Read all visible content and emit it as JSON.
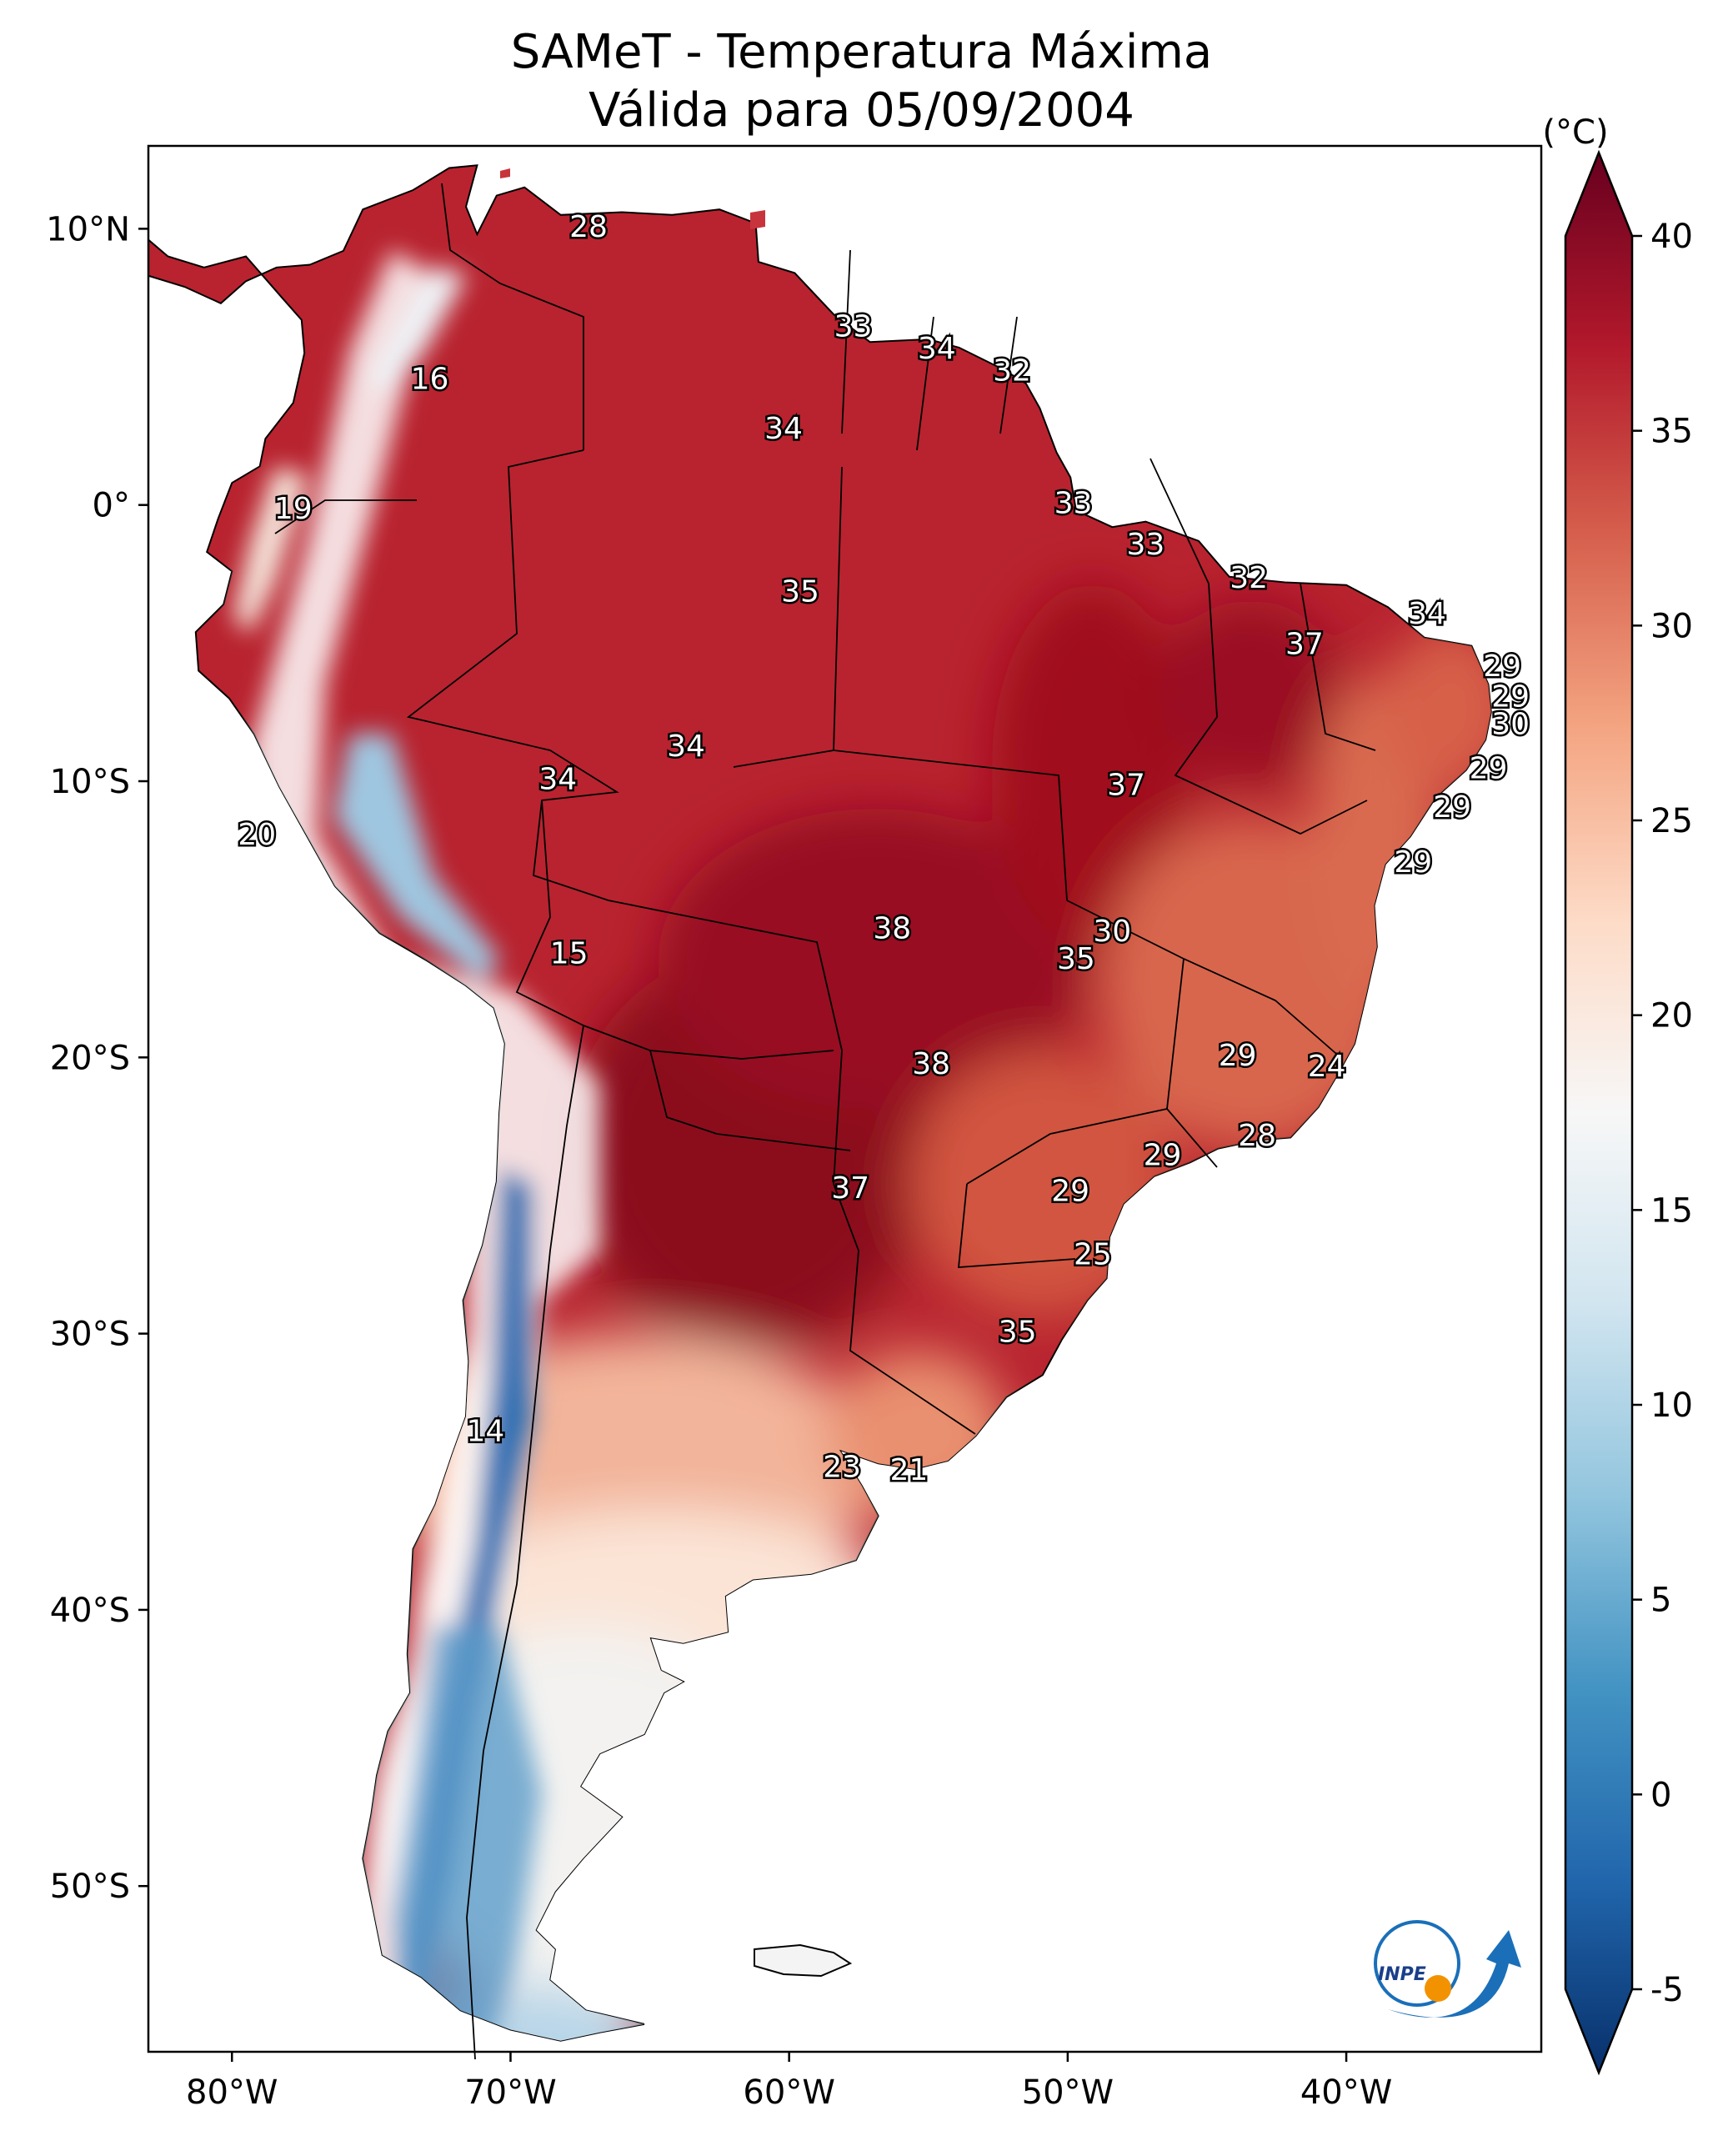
{
  "title": {
    "line1": "SAMeT - Temperatura Máxima",
    "line2": "Válida para 05/09/2004"
  },
  "map": {
    "lon_range": [
      -83,
      -33
    ],
    "lat_range": [
      -56,
      13
    ],
    "lon_ticks": [
      {
        "lon": -80,
        "label": "80°W"
      },
      {
        "lon": -70,
        "label": "70°W"
      },
      {
        "lon": -60,
        "label": "60°W"
      },
      {
        "lon": -50,
        "label": "50°W"
      },
      {
        "lon": -40,
        "label": "40°W"
      }
    ],
    "lat_ticks": [
      {
        "lat": 10,
        "label": "10°N"
      },
      {
        "lat": 0,
        "label": "0°"
      },
      {
        "lat": -10,
        "label": "10°S"
      },
      {
        "lat": -20,
        "label": "20°S"
      },
      {
        "lat": -30,
        "label": "30°S"
      },
      {
        "lat": -40,
        "label": "40°S"
      },
      {
        "lat": -50,
        "label": "50°S"
      }
    ],
    "value_labels": [
      {
        "lon": -67.2,
        "lat": 10.1,
        "text": "28"
      },
      {
        "lon": -57.7,
        "lat": 6.5,
        "text": "33"
      },
      {
        "lon": -54.7,
        "lat": 5.7,
        "text": "34"
      },
      {
        "lon": -52.0,
        "lat": 4.9,
        "text": "32"
      },
      {
        "lon": -72.9,
        "lat": 4.6,
        "text": "16"
      },
      {
        "lon": -60.2,
        "lat": 2.8,
        "text": "34"
      },
      {
        "lon": -49.8,
        "lat": 0.1,
        "text": "33"
      },
      {
        "lon": -77.8,
        "lat": -0.1,
        "text": "19"
      },
      {
        "lon": -47.2,
        "lat": -1.4,
        "text": "33"
      },
      {
        "lon": -59.6,
        "lat": -3.1,
        "text": "35"
      },
      {
        "lon": -43.5,
        "lat": -2.6,
        "text": "32"
      },
      {
        "lon": -37.1,
        "lat": -3.9,
        "text": "34"
      },
      {
        "lon": -41.5,
        "lat": -5.0,
        "text": "37"
      },
      {
        "lon": -34.4,
        "lat": -5.8,
        "text": "29"
      },
      {
        "lon": -34.1,
        "lat": -6.9,
        "text": "29"
      },
      {
        "lon": -34.1,
        "lat": -7.9,
        "text": "30"
      },
      {
        "lon": -63.7,
        "lat": -8.7,
        "text": "34"
      },
      {
        "lon": -34.9,
        "lat": -9.5,
        "text": "29"
      },
      {
        "lon": -68.3,
        "lat": -9.9,
        "text": "34"
      },
      {
        "lon": -47.9,
        "lat": -10.1,
        "text": "37"
      },
      {
        "lon": -36.2,
        "lat": -10.9,
        "text": "29"
      },
      {
        "lon": -79.1,
        "lat": -11.9,
        "text": "20"
      },
      {
        "lon": -37.6,
        "lat": -12.9,
        "text": "29"
      },
      {
        "lon": -67.9,
        "lat": -16.2,
        "text": "15"
      },
      {
        "lon": -56.3,
        "lat": -15.3,
        "text": "38"
      },
      {
        "lon": -48.4,
        "lat": -15.4,
        "text": "30"
      },
      {
        "lon": -49.7,
        "lat": -16.4,
        "text": "35"
      },
      {
        "lon": -43.9,
        "lat": -19.9,
        "text": "29"
      },
      {
        "lon": -40.7,
        "lat": -20.3,
        "text": "24"
      },
      {
        "lon": -54.9,
        "lat": -20.2,
        "text": "38"
      },
      {
        "lon": -43.2,
        "lat": -22.8,
        "text": "28"
      },
      {
        "lon": -46.6,
        "lat": -23.5,
        "text": "29"
      },
      {
        "lon": -57.8,
        "lat": -24.7,
        "text": "37"
      },
      {
        "lon": -49.9,
        "lat": -24.8,
        "text": "29"
      },
      {
        "lon": -49.1,
        "lat": -27.1,
        "text": "25"
      },
      {
        "lon": -51.8,
        "lat": -29.9,
        "text": "35"
      },
      {
        "lon": -70.9,
        "lat": -33.5,
        "text": "14"
      },
      {
        "lon": -58.1,
        "lat": -34.8,
        "text": "23"
      },
      {
        "lon": -55.7,
        "lat": -34.9,
        "text": "21"
      }
    ]
  },
  "colorbar": {
    "unit": "(°C)",
    "range": [
      -5,
      40
    ],
    "ticks": [
      "-5",
      "0",
      "5",
      "10",
      "15",
      "20",
      "25",
      "30",
      "35",
      "40"
    ],
    "colors": [
      "#08306b",
      "#2166ac",
      "#4393c3",
      "#92c5de",
      "#d1e5f0",
      "#f7f7f7",
      "#fddbc7",
      "#f4a582",
      "#d6604d",
      "#b2182b",
      "#67001f"
    ]
  },
  "logo": {
    "text": "INPE"
  }
}
